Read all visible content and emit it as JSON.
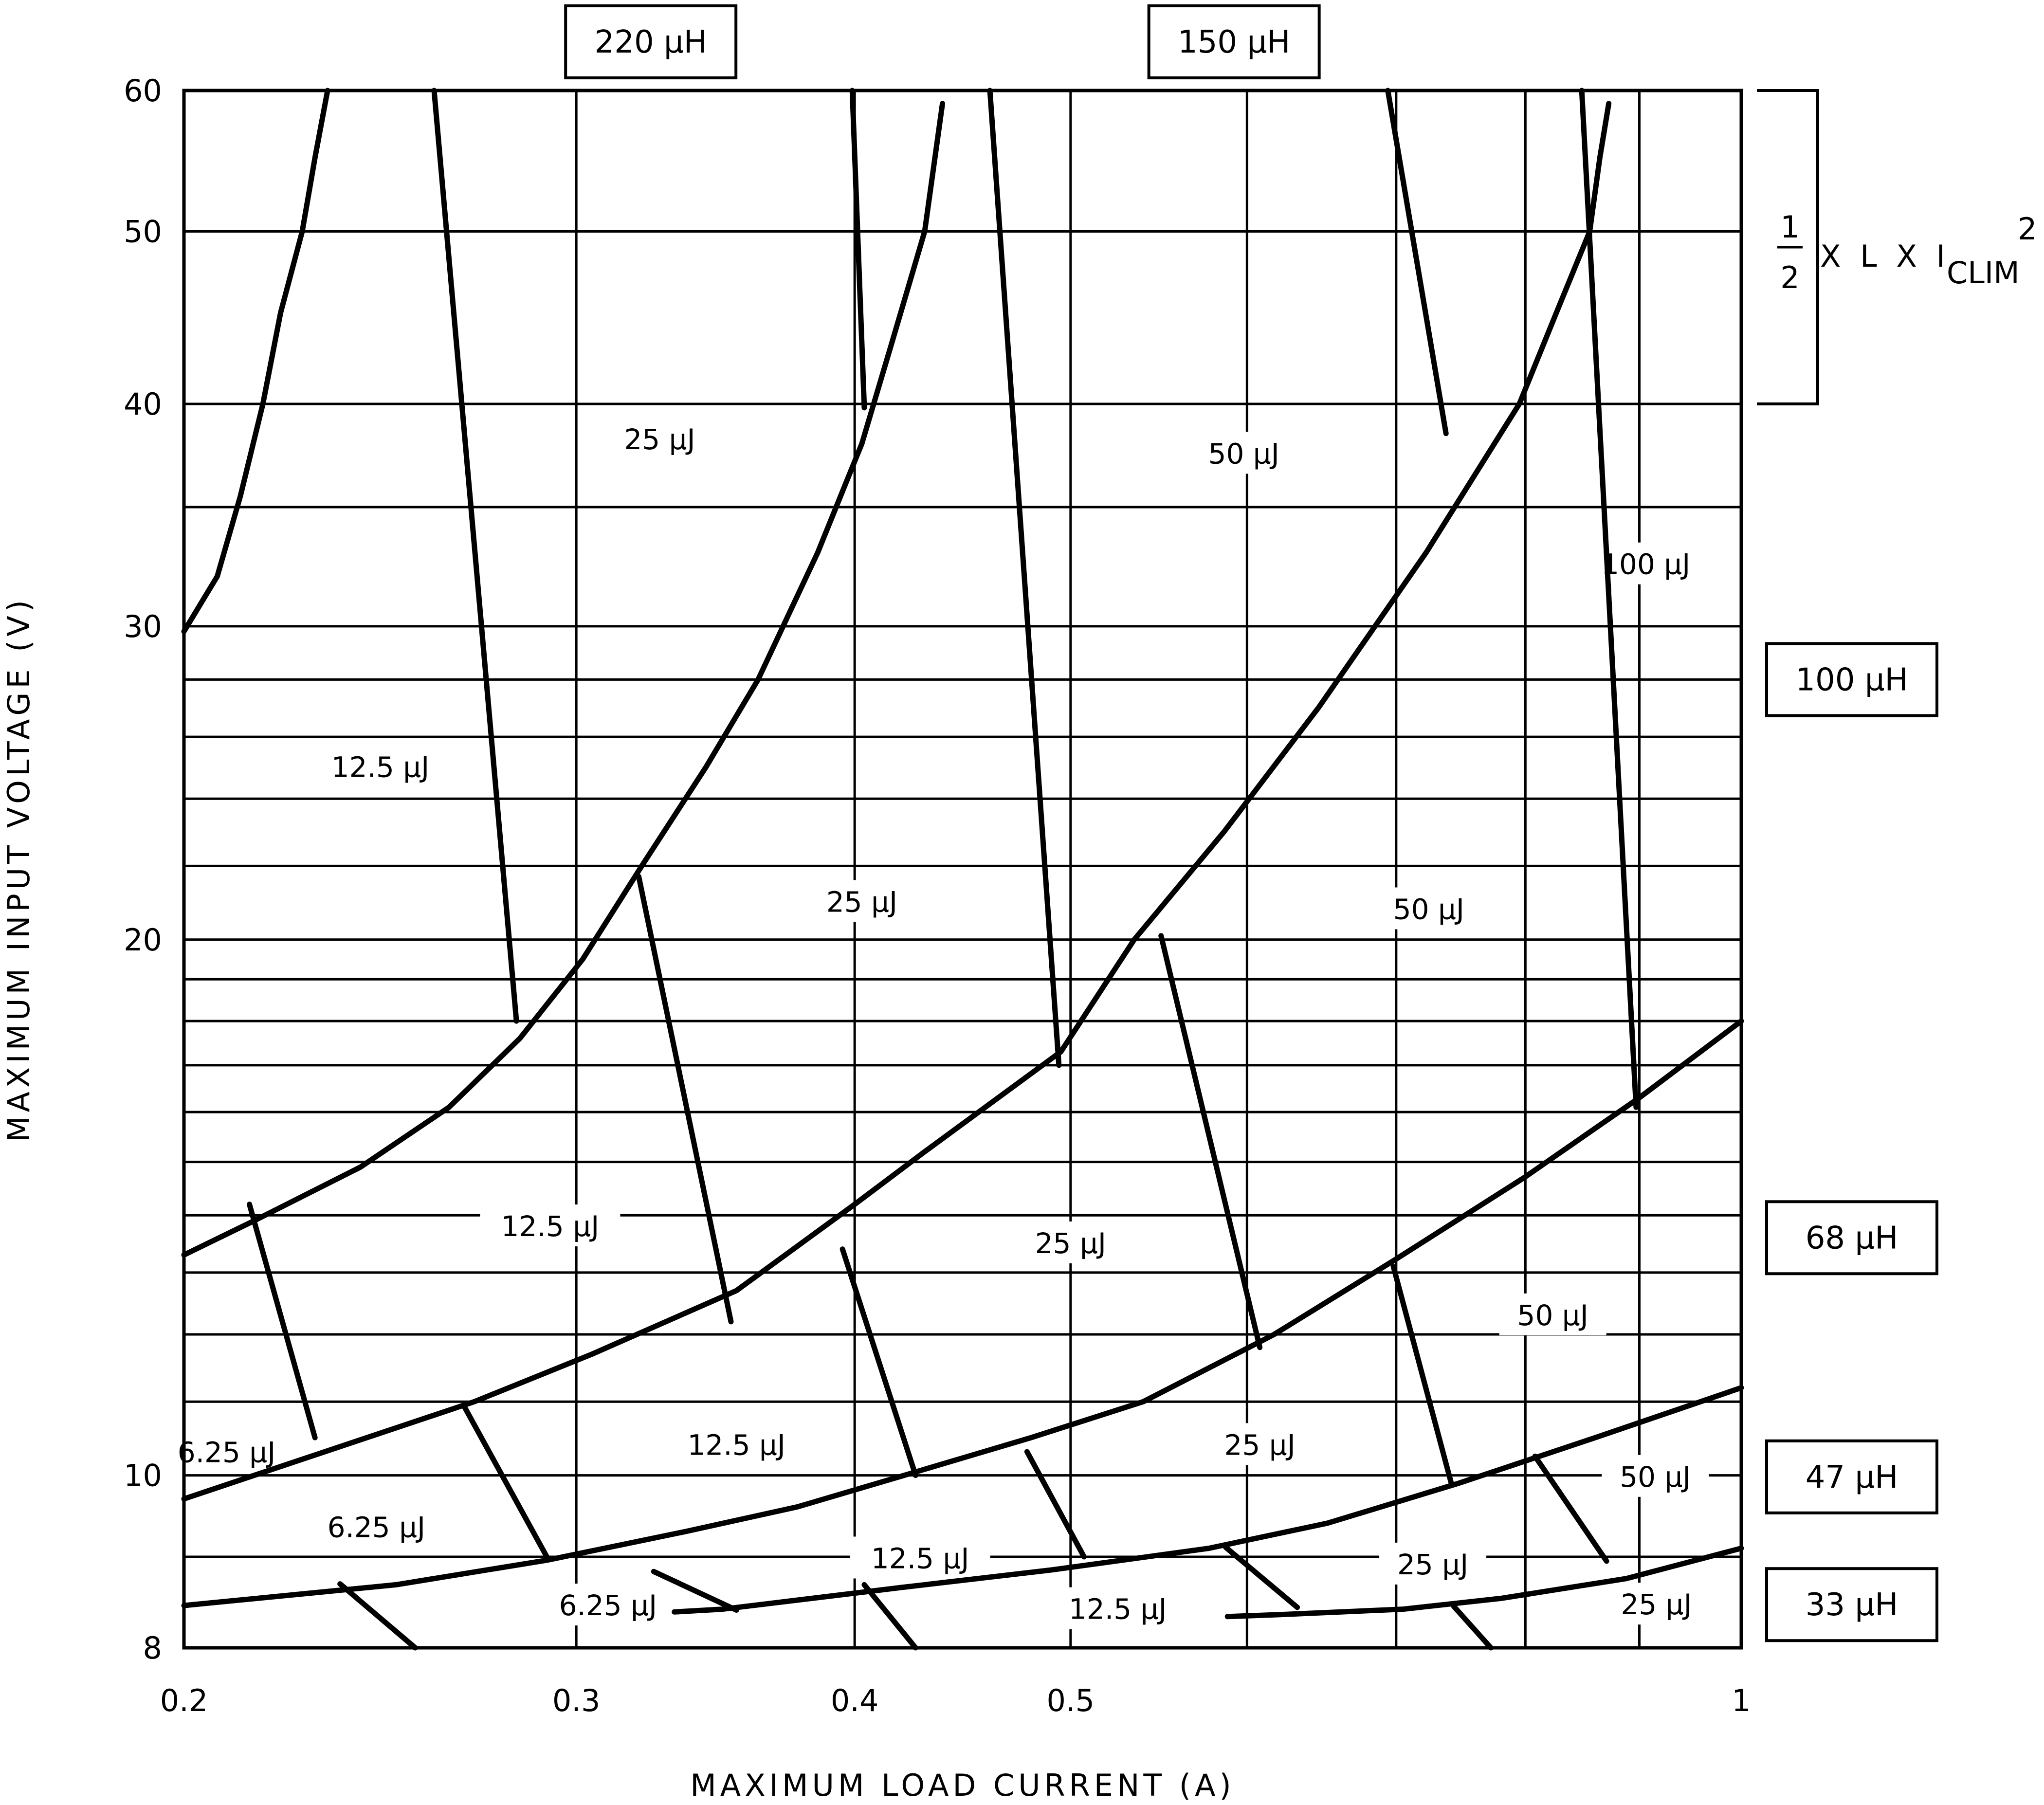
{
  "chart_data": {
    "type": "line",
    "title": "",
    "xlabel": "MAXIMUM LOAD CURRENT (A)",
    "ylabel": "MAXIMUM INPUT VOLTAGE (V)",
    "x_scale": "log",
    "y_scale": "log",
    "xlim": [
      0.2,
      1.0
    ],
    "ylim": [
      8,
      60
    ],
    "x_ticks": [
      {
        "value": 0.2,
        "label": "0.2"
      },
      {
        "value": 0.3,
        "label": "0.3"
      },
      {
        "value": 0.4,
        "label": "0.4"
      },
      {
        "value": 0.5,
        "label": "0.5"
      },
      {
        "value": 1.0,
        "label": "1"
      }
    ],
    "x_grid": [
      0.3,
      0.4,
      0.5,
      0.6,
      0.7,
      0.8,
      0.9
    ],
    "y_ticks": [
      {
        "value": 8,
        "label": "8"
      },
      {
        "value": 10,
        "label": "10"
      },
      {
        "value": 20,
        "label": "20"
      },
      {
        "value": 30,
        "label": "30"
      },
      {
        "value": 40,
        "label": "40"
      },
      {
        "value": 50,
        "label": "50"
      },
      {
        "value": 60,
        "label": "60"
      }
    ],
    "y_grid": [
      9,
      10,
      11,
      12,
      13,
      14,
      15,
      16,
      17,
      18,
      19,
      20,
      22,
      24,
      26,
      28,
      30,
      35,
      40,
      50
    ],
    "grid": true,
    "boundaries": [
      {
        "name": "220/150",
        "points": [
          [
            0.232,
            60
          ],
          [
            0.229,
            55
          ],
          [
            0.226,
            50
          ],
          [
            0.221,
            45
          ],
          [
            0.217,
            40
          ],
          [
            0.212,
            35.5
          ],
          [
            0.207,
            32
          ],
          [
            0.2,
            29.8
          ]
        ]
      },
      {
        "name": "150/100",
        "points": [
          [
            0.438,
            59
          ],
          [
            0.43,
            50
          ],
          [
            0.415,
            43
          ],
          [
            0.403,
            38
          ],
          [
            0.385,
            33
          ],
          [
            0.362,
            28
          ],
          [
            0.343,
            25
          ],
          [
            0.321,
            22
          ],
          [
            0.302,
            19.5
          ],
          [
            0.283,
            17.6
          ],
          [
            0.263,
            16.1
          ],
          [
            0.24,
            14.9
          ],
          [
            0.215,
            13.9
          ],
          [
            0.2,
            13.3
          ]
        ]
      },
      {
        "name": "100/68",
        "points": [
          [
            0.872,
            59
          ],
          [
            0.864,
            55
          ],
          [
            0.855,
            50
          ],
          [
            0.826,
            45
          ],
          [
            0.795,
            40
          ],
          [
            0.722,
            33
          ],
          [
            0.646,
            27
          ],
          [
            0.586,
            23
          ],
          [
            0.534,
            20
          ],
          [
            0.495,
            17.3
          ],
          [
            0.43,
            15.2
          ],
          [
            0.4,
            14.2
          ],
          [
            0.354,
            12.7
          ],
          [
            0.305,
            11.7
          ],
          [
            0.27,
            11.0
          ],
          [
            0.2,
            9.7
          ]
        ]
      },
      {
        "name": "68/47",
        "points": [
          [
            1.0,
            18.0
          ],
          [
            0.9,
            16.3
          ],
          [
            0.799,
            14.7
          ],
          [
            0.698,
            13.2
          ],
          [
            0.617,
            12.0
          ],
          [
            0.539,
            11.0
          ],
          [
            0.48,
            10.5
          ],
          [
            0.421,
            10.0
          ],
          [
            0.377,
            9.6
          ],
          [
            0.336,
            9.3
          ],
          [
            0.291,
            8.96
          ],
          [
            0.249,
            8.68
          ],
          [
            0.2,
            8.45
          ]
        ]
      },
      {
        "name": "47/33",
        "points": [
          [
            1.0,
            11.2
          ],
          [
            0.86,
            10.5
          ],
          [
            0.747,
            9.9
          ],
          [
            0.652,
            9.4
          ],
          [
            0.577,
            9.1
          ],
          [
            0.491,
            8.85
          ],
          [
            0.42,
            8.65
          ],
          [
            0.349,
            8.41
          ],
          [
            0.332,
            8.38
          ]
        ]
      },
      {
        "name": "33/22",
        "points": [
          [
            1.0,
            9.1
          ],
          [
            0.888,
            8.75
          ],
          [
            0.781,
            8.53
          ],
          [
            0.705,
            8.41
          ],
          [
            0.619,
            8.35
          ],
          [
            0.588,
            8.33
          ]
        ]
      }
    ],
    "energy_lines": [
      [
        [
          0.259,
          60
        ],
        [
          0.282,
          18.0
        ]
      ],
      [
        [
          0.399,
          60
        ],
        [
          0.404,
          39.8
        ]
      ],
      [
        [
          0.46,
          60
        ],
        [
          0.494,
          17.0
        ]
      ],
      [
        [
          0.694,
          60
        ],
        [
          0.737,
          38.5
        ]
      ],
      [
        [
          0.848,
          60
        ],
        [
          0.897,
          16.1
        ]
      ],
      [
        [
          0.214,
          14.2
        ],
        [
          0.229,
          10.5
        ]
      ],
      [
        [
          0.32,
          21.7
        ],
        [
          0.352,
          12.2
        ]
      ],
      [
        [
          0.395,
          13.4
        ],
        [
          0.426,
          10.0
        ]
      ],
      [
        [
          0.549,
          20.1
        ],
        [
          0.608,
          11.8
        ]
      ],
      [
        [
          0.698,
          13.1
        ],
        [
          0.741,
          9.9
        ]
      ],
      [
        [
          0.267,
          10.95
        ],
        [
          0.291,
          9.0
        ]
      ],
      [
        [
          0.325,
          8.83
        ],
        [
          0.354,
          8.4
        ]
      ],
      [
        [
          0.478,
          10.31
        ],
        [
          0.507,
          9.0
        ]
      ],
      [
        [
          0.587,
          9.11
        ],
        [
          0.632,
          8.43
        ]
      ],
      [
        [
          0.808,
          10.25
        ],
        [
          0.87,
          8.95
        ]
      ],
      [
        [
          0.235,
          8.69
        ],
        [
          0.254,
          8.0
        ]
      ],
      [
        [
          0.404,
          8.68
        ],
        [
          0.426,
          8.0
        ]
      ],
      [
        [
          0.743,
          8.44
        ],
        [
          0.772,
          8.0
        ]
      ]
    ],
    "energy_labels": [
      {
        "text": "25 μJ",
        "x": 0.327,
        "y": 38.2
      },
      {
        "text": "50 μJ",
        "x": 0.598,
        "y": 37.5
      },
      {
        "text": "100 μJ",
        "x": 0.906,
        "y": 32.5
      },
      {
        "text": "12.5 μJ",
        "x": 0.245,
        "y": 25.0
      },
      {
        "text": "25 μJ",
        "x": 0.403,
        "y": 21.0
      },
      {
        "text": "50 μJ",
        "x": 0.724,
        "y": 20.8
      },
      {
        "text": "12.5 μJ",
        "x": 0.292,
        "y": 13.8
      },
      {
        "text": "25 μJ",
        "x": 0.5,
        "y": 13.5
      },
      {
        "text": "50 μJ",
        "x": 0.823,
        "y": 12.3
      },
      {
        "text": "6.25 μJ",
        "x": 0.209,
        "y": 10.3
      },
      {
        "text": "12.5 μJ",
        "x": 0.354,
        "y": 10.4
      },
      {
        "text": "25 μJ",
        "x": 0.608,
        "y": 10.4
      },
      {
        "text": "50 μJ",
        "x": 0.915,
        "y": 9.98
      },
      {
        "text": "6.25 μJ",
        "x": 0.244,
        "y": 9.35
      },
      {
        "text": "12.5 μJ",
        "x": 0.428,
        "y": 8.98
      },
      {
        "text": "25 μJ",
        "x": 0.727,
        "y": 8.91
      },
      {
        "text": "6.25 μJ",
        "x": 0.31,
        "y": 8.45
      },
      {
        "text": "12.5 μJ",
        "x": 0.525,
        "y": 8.41
      },
      {
        "text": "25 μJ",
        "x": 0.916,
        "y": 8.46
      }
    ],
    "inductor_labels": [
      {
        "text": "220 μH",
        "position": "top",
        "x": 0.324
      },
      {
        "text": "150 μH",
        "position": "top",
        "x": 0.592
      },
      {
        "text": "100 μH",
        "position": "right",
        "y": 28.0
      },
      {
        "text": "68 μH",
        "position": "right",
        "y": 13.6
      },
      {
        "text": "47 μH",
        "position": "right",
        "y": 9.98
      },
      {
        "text": "33 μH",
        "position": "right",
        "y": 8.46
      }
    ],
    "formula": {
      "numerator": "1",
      "denominator": "2",
      "text": "X L X I",
      "subscript": "CLIM",
      "superscript": "2",
      "bracket_range": [
        40,
        60
      ]
    }
  }
}
